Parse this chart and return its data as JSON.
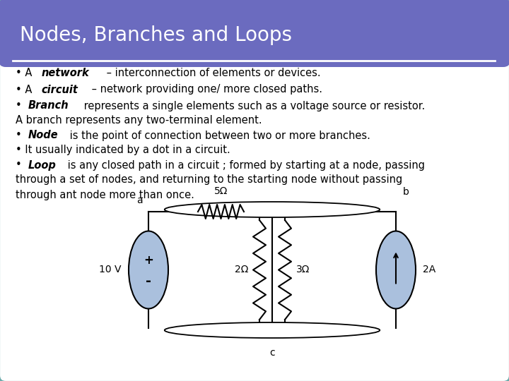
{
  "title": "Nodes, Branches and Loops",
  "title_bg": "#6b6bbf",
  "slide_bg": "#ffffff",
  "border_color": "#6aabab",
  "font_size_title": 20,
  "font_size_body": 10.5,
  "bullet_lines": [
    [
      {
        "text": "• A ",
        "style": "normal"
      },
      {
        "text": "network",
        "style": "bolditalic"
      },
      {
        "text": " – interconnection of elements or devices.",
        "style": "normal"
      }
    ],
    [
      {
        "text": "• A ",
        "style": "normal"
      },
      {
        "text": "circuit",
        "style": "bolditalic"
      },
      {
        "text": " – network providing one/ more closed paths.",
        "style": "normal"
      }
    ],
    [
      {
        "text": "• ",
        "style": "normal"
      },
      {
        "text": "Branch",
        "style": "bolditalic"
      },
      {
        "text": " represents a single elements such as a voltage source or resistor.",
        "style": "normal"
      }
    ],
    [
      {
        "text": "A branch represents any two-terminal element.",
        "style": "normal"
      }
    ],
    [
      {
        "text": "• ",
        "style": "normal"
      },
      {
        "text": "Node",
        "style": "bolditalic"
      },
      {
        "text": " is the point of connection between two or more branches.",
        "style": "normal"
      }
    ],
    [
      {
        "text": "• It usually indicated by a dot in a circuit.",
        "style": "normal"
      }
    ],
    [
      {
        "text": "• ",
        "style": "normal"
      },
      {
        "text": "Loop",
        "style": "bolditalic"
      },
      {
        "text": " is any closed path in a circuit ; formed by starting at a node, passing",
        "style": "normal"
      }
    ],
    [
      {
        "text": "through a set of nodes, and returning to the starting node without passing",
        "style": "normal"
      }
    ],
    [
      {
        "text": "through ant node more than once.",
        "style": "normal"
      }
    ]
  ],
  "circuit": {
    "ellipse_color": "#aac0dd",
    "wire_color": "#111111",
    "r1_label": "5Ω",
    "r2_label": "2Ω",
    "r3_label": "3Ω",
    "v_label": "10 V",
    "i_label": "2A",
    "node_a": "a",
    "node_b": "b",
    "node_c": "c"
  }
}
